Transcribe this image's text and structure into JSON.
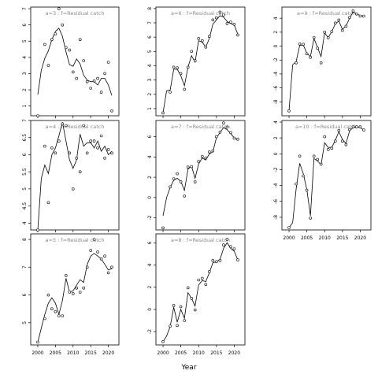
{
  "figure": {
    "xlabel": "Year"
  },
  "chart_data": [
    {
      "type": "scatter",
      "panel": "a=5",
      "title": "a=5 : f=Residual catch",
      "ylim": [
        4.2,
        8.2
      ],
      "yticks": [
        5,
        6,
        7,
        8
      ],
      "xlim": [
        1998,
        2023
      ],
      "xticks": [
        2000,
        2005,
        2010,
        2015,
        2020
      ],
      "points": {
        "x": [
          2000,
          2002,
          2003,
          2004,
          2005,
          2006,
          2007,
          2008,
          2009,
          2010,
          2011,
          2012,
          2013,
          2014,
          2015,
          2016,
          2017,
          2018,
          2019,
          2020,
          2021
        ],
        "y": [
          4.3,
          5.15,
          6.0,
          5.5,
          5.4,
          5.25,
          5.25,
          6.7,
          6.1,
          6.05,
          6.25,
          6.1,
          6.25,
          7.0,
          7.6,
          8.0,
          7.55,
          7.3,
          7.4,
          6.8,
          7.0
        ]
      },
      "fit": {
        "x": [
          2000,
          2001,
          2002,
          2003,
          2004,
          2005,
          2006,
          2007,
          2008,
          2009,
          2010,
          2011,
          2012,
          2013,
          2014,
          2015,
          2016,
          2017,
          2018,
          2019,
          2020,
          2021
        ],
        "y": [
          4.3,
          4.8,
          5.3,
          5.7,
          5.9,
          5.7,
          5.3,
          5.8,
          6.6,
          6.1,
          6.15,
          6.35,
          6.55,
          6.45,
          7.1,
          7.4,
          7.5,
          7.4,
          7.3,
          7.1,
          6.9,
          6.95
        ]
      }
    },
    {
      "type": "scatter",
      "panel": "a=4",
      "title": "a=4 : f=Residual catch",
      "ylim": [
        3.8,
        7.0
      ],
      "yticks": [
        4.0,
        4.5,
        5.0,
        5.5,
        6.0,
        6.5,
        7.0
      ],
      "xlim": [
        1998,
        2023
      ],
      "xticks": [
        2000,
        2005,
        2010,
        2015,
        2020
      ],
      "points": {
        "x": [
          2000,
          2002,
          2003,
          2004,
          2005,
          2006,
          2007,
          2008,
          2009,
          2010,
          2011,
          2012,
          2013,
          2014,
          2015,
          2016,
          2017,
          2018,
          2019,
          2020,
          2021
        ],
        "y": [
          3.8,
          6.25,
          4.6,
          6.2,
          6.05,
          6.4,
          6.9,
          6.85,
          6.05,
          5.0,
          5.9,
          5.5,
          6.85,
          6.05,
          6.4,
          6.4,
          6.2,
          6.55,
          5.9,
          6.15,
          6.05
        ]
      },
      "fit": {
        "x": [
          2000,
          2001,
          2002,
          2003,
          2004,
          2005,
          2006,
          2007,
          2008,
          2009,
          2010,
          2011,
          2012,
          2013,
          2014,
          2015,
          2016,
          2017,
          2018,
          2019,
          2020,
          2021
        ],
        "y": [
          3.8,
          5.3,
          5.7,
          5.45,
          6.0,
          6.2,
          6.55,
          6.95,
          6.4,
          5.85,
          5.6,
          5.85,
          6.6,
          6.25,
          6.35,
          6.35,
          6.2,
          6.4,
          6.1,
          6.25,
          6.0,
          6.1
        ]
      }
    },
    {
      "type": "scatter",
      "panel": "a=3",
      "title": "a=3 : f=Residual catch",
      "ylim": [
        0.4,
        7.1
      ],
      "yticks": [
        1,
        2,
        3,
        4,
        5,
        6,
        7
      ],
      "xlim": [
        1998,
        2023
      ],
      "xticks": [
        2000,
        2005,
        2010,
        2015,
        2020
      ],
      "points": {
        "x": [
          2000,
          2002,
          2003,
          2004,
          2005,
          2006,
          2007,
          2008,
          2009,
          2010,
          2011,
          2012,
          2013,
          2014,
          2015,
          2016,
          2017,
          2018,
          2019,
          2020,
          2021
        ],
        "y": [
          0.4,
          4.8,
          3.5,
          5.1,
          5.45,
          7.0,
          6.0,
          4.6,
          4.45,
          3.1,
          2.7,
          5.1,
          3.8,
          2.5,
          2.1,
          2.55,
          2.7,
          1.85,
          3.0,
          3.7,
          0.7
        ]
      },
      "fit": {
        "x": [
          2000,
          2001,
          2002,
          2003,
          2004,
          2005,
          2006,
          2007,
          2008,
          2009,
          2010,
          2011,
          2012,
          2013,
          2014,
          2015,
          2016,
          2017,
          2018,
          2019,
          2020,
          2021
        ],
        "y": [
          1.7,
          3.2,
          3.95,
          4.4,
          5.1,
          5.6,
          5.8,
          5.3,
          4.35,
          3.55,
          3.45,
          3.9,
          3.6,
          2.9,
          2.6,
          2.5,
          2.5,
          2.3,
          2.7,
          2.7,
          2.3,
          1.65
        ]
      }
    },
    {
      "type": "scatter",
      "panel": "a=8",
      "title": "a=8 : f=Residual catch",
      "ylim": [
        -3.2,
        6.8
      ],
      "yticks": [
        -2,
        0,
        2,
        4,
        6
      ],
      "xlim": [
        1998,
        2023
      ],
      "xticks": [
        2000,
        2005,
        2010,
        2015,
        2020
      ],
      "points": {
        "x": [
          2000,
          2002,
          2003,
          2004,
          2005,
          2006,
          2007,
          2008,
          2009,
          2010,
          2011,
          2012,
          2013,
          2014,
          2015,
          2016,
          2017,
          2018,
          2019,
          2020,
          2021
        ],
        "y": [
          -2.9,
          -1.5,
          0.35,
          -1.45,
          0.25,
          -1.0,
          1.95,
          1.0,
          -0.05,
          2.65,
          2.8,
          2.25,
          3.4,
          4.4,
          4.3,
          4.4,
          5.8,
          6.3,
          5.65,
          5.45,
          4.45
        ]
      },
      "fit": {
        "x": [
          2000,
          2001,
          2002,
          2003,
          2004,
          2005,
          2006,
          2007,
          2008,
          2009,
          2010,
          2011,
          2012,
          2013,
          2014,
          2015,
          2016,
          2017,
          2018,
          2019,
          2020,
          2021
        ],
        "y": [
          -2.9,
          -2.4,
          -1.55,
          0.2,
          -1.15,
          0.0,
          -0.8,
          1.5,
          1.0,
          0.3,
          2.2,
          2.6,
          2.5,
          3.3,
          4.2,
          4.3,
          4.5,
          5.5,
          6.0,
          5.5,
          5.25,
          4.45
        ]
      }
    },
    {
      "type": "scatter",
      "panel": "a=7",
      "title": "a=7 : f=Residual catch",
      "ylim": [
        -3.2,
        7.6
      ],
      "yticks": [
        -2,
        0,
        2,
        4,
        6
      ],
      "xlim": [
        1998,
        2023
      ],
      "xticks": [
        2000,
        2005,
        2010,
        2015,
        2020
      ],
      "points": {
        "x": [
          2000,
          2002,
          2003,
          2004,
          2005,
          2006,
          2007,
          2008,
          2009,
          2010,
          2011,
          2012,
          2013,
          2014,
          2015,
          2016,
          2017,
          2018,
          2019,
          2020,
          2021
        ],
        "y": [
          -3.0,
          1.05,
          1.85,
          2.35,
          1.55,
          0.15,
          3.0,
          3.05,
          1.55,
          3.55,
          4.05,
          3.9,
          4.5,
          4.6,
          6.0,
          6.45,
          7.35,
          6.95,
          6.4,
          5.85,
          5.75
        ]
      },
      "fit": {
        "x": [
          2000,
          2001,
          2002,
          2003,
          2004,
          2005,
          2006,
          2007,
          2008,
          2009,
          2010,
          2011,
          2012,
          2013,
          2014,
          2015,
          2016,
          2017,
          2018,
          2019,
          2020,
          2021
        ],
        "y": [
          -1.8,
          0.0,
          1.0,
          1.7,
          1.9,
          1.6,
          0.7,
          2.8,
          3.1,
          1.9,
          3.3,
          3.9,
          3.7,
          4.3,
          4.5,
          5.9,
          6.4,
          6.9,
          6.7,
          6.3,
          5.9,
          5.7
        ]
      }
    },
    {
      "type": "scatter",
      "panel": "a=6",
      "title": "a=6 : f=Residual catch",
      "ylim": [
        0.5,
        8.1
      ],
      "yticks": [
        1,
        2,
        3,
        4,
        5,
        6,
        7,
        8
      ],
      "xlim": [
        1998,
        2023
      ],
      "xticks": [
        2000,
        2005,
        2010,
        2015,
        2020
      ],
      "points": {
        "x": [
          2000,
          2002,
          2003,
          2004,
          2005,
          2006,
          2007,
          2008,
          2009,
          2010,
          2011,
          2012,
          2013,
          2014,
          2015,
          2016,
          2017,
          2018,
          2019,
          2020,
          2021
        ],
        "y": [
          0.7,
          2.15,
          3.9,
          3.85,
          3.45,
          2.35,
          3.9,
          5.0,
          4.35,
          5.9,
          5.75,
          5.3,
          6.05,
          7.2,
          7.35,
          7.75,
          7.55,
          6.95,
          7.05,
          6.9,
          6.15
        ]
      },
      "fit": {
        "x": [
          2000,
          2001,
          2002,
          2003,
          2004,
          2005,
          2006,
          2007,
          2008,
          2009,
          2010,
          2011,
          2012,
          2013,
          2014,
          2015,
          2016,
          2017,
          2018,
          2019,
          2020,
          2021
        ],
        "y": [
          0.7,
          2.25,
          2.3,
          3.75,
          3.75,
          3.3,
          2.6,
          3.9,
          4.7,
          4.25,
          5.75,
          5.65,
          5.3,
          5.9,
          6.9,
          7.2,
          7.5,
          7.4,
          7.1,
          6.95,
          6.85,
          6.2
        ]
      }
    },
    {
      "type": "scatter",
      "panel": "a=10",
      "title": "a=10 : f=Residual catch",
      "ylim": [
        -9.6,
        4.2
      ],
      "yticks": [
        -8,
        -6,
        -4,
        -2,
        0,
        2,
        4
      ],
      "xlim": [
        1998,
        2023
      ],
      "xticks": [
        2000,
        2005,
        2010,
        2015,
        2020
      ],
      "points": {
        "x": [
          2000,
          2002,
          2003,
          2004,
          2005,
          2006,
          2007,
          2008,
          2009,
          2010,
          2011,
          2012,
          2013,
          2014,
          2015,
          2016,
          2017,
          2018,
          2019,
          2020,
          2021
        ],
        "y": [
          -9.3,
          -3.8,
          -0.3,
          -2.8,
          -4.6,
          -8.1,
          -0.3,
          -0.7,
          -1.3,
          2.15,
          0.55,
          0.7,
          1.6,
          2.95,
          1.6,
          1.15,
          3.05,
          3.4,
          3.4,
          3.4,
          3.0
        ]
      },
      "fit": {
        "x": [
          2000,
          2001,
          2002,
          2003,
          2004,
          2005,
          2006,
          2007,
          2008,
          2009,
          2010,
          2011,
          2012,
          2013,
          2014,
          2015,
          2016,
          2017,
          2018,
          2019,
          2020,
          2021
        ],
        "y": [
          -9.3,
          -8.7,
          -4.4,
          -1.2,
          -2.5,
          -4.5,
          -7.8,
          -0.6,
          -0.9,
          -1.4,
          1.4,
          0.8,
          0.8,
          1.7,
          2.8,
          1.8,
          1.3,
          2.9,
          3.3,
          3.4,
          3.3,
          3.0
        ]
      }
    },
    {
      "type": "scatter",
      "panel": "a=9",
      "title": "a=9 : f=Residual catch",
      "ylim": [
        -10.0,
        5.6
      ],
      "yticks": [
        -8,
        -6,
        -4,
        -2,
        0,
        2,
        4
      ],
      "xlim": [
        1998,
        2023
      ],
      "xticks": [
        2000,
        2005,
        2010,
        2015,
        2020
      ],
      "points": {
        "x": [
          2000,
          2002,
          2003,
          2004,
          2005,
          2006,
          2007,
          2008,
          2009,
          2010,
          2011,
          2012,
          2013,
          2014,
          2015,
          2016,
          2017,
          2018,
          2019,
          2020,
          2021
        ],
        "y": [
          -9.3,
          -2.4,
          0.3,
          0.25,
          -1.1,
          -1.6,
          1.25,
          -0.3,
          -2.4,
          2.0,
          1.2,
          2.1,
          3.3,
          3.75,
          2.25,
          2.85,
          4.1,
          5.05,
          4.6,
          4.3,
          4.3
        ]
      },
      "fit": {
        "x": [
          2000,
          2001,
          2002,
          2003,
          2004,
          2005,
          2006,
          2007,
          2008,
          2009,
          2010,
          2011,
          2012,
          2013,
          2014,
          2015,
          2016,
          2017,
          2018,
          2019,
          2020,
          2021
        ],
        "y": [
          -9.3,
          -2.7,
          -2.2,
          0.1,
          0.15,
          -1.0,
          -1.5,
          1.1,
          -0.2,
          -1.5,
          1.9,
          1.2,
          2.1,
          3.2,
          3.6,
          2.4,
          2.9,
          4.0,
          4.9,
          4.6,
          4.4,
          4.3
        ]
      }
    }
  ]
}
